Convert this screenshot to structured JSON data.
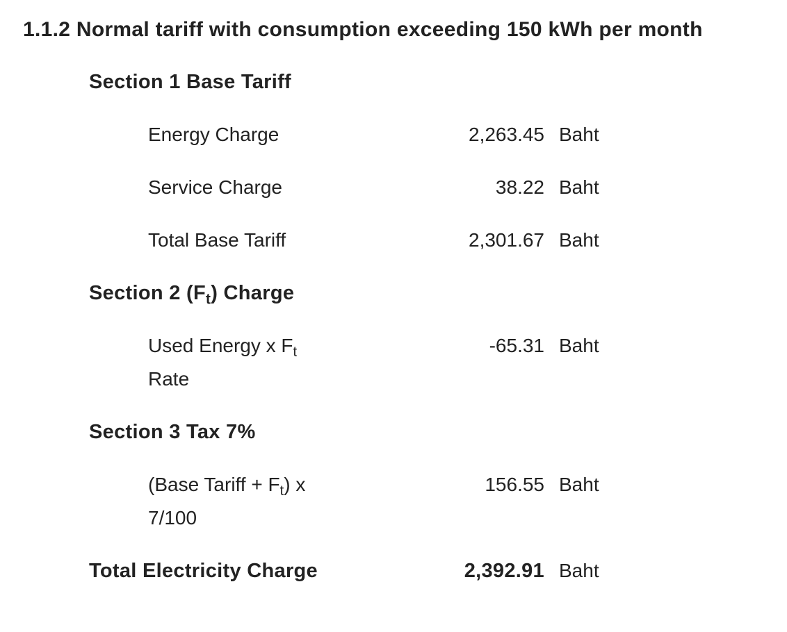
{
  "title": "1.1.2 Normal tariff with consumption exceeding 150 kWh per month",
  "sections": [
    {
      "heading": [
        "Section 1 Base Tariff"
      ],
      "rows": [
        {
          "label": [
            "Energy Charge"
          ],
          "value": "2,263.45",
          "unit": "Baht"
        },
        {
          "label": [
            "Service Charge"
          ],
          "value": "38.22",
          "unit": "Baht"
        },
        {
          "label": [
            "Total Base Tariff"
          ],
          "value": "2,301.67",
          "unit": "Baht"
        }
      ]
    },
    {
      "heading": [
        "Section 2 (F",
        "t",
        ") Charge"
      ],
      "rows": [
        {
          "label": [
            "Used Energy x F",
            "t",
            " Rate"
          ],
          "value": "-65.31",
          "unit": "Baht"
        }
      ]
    },
    {
      "heading": [
        "Section 3 Tax 7%"
      ],
      "rows": [
        {
          "label": [
            "(Base Tariff + F",
            "t",
            ") x 7/100"
          ],
          "value": "156.55",
          "unit": "Baht"
        }
      ]
    }
  ],
  "total": {
    "label": [
      "Total Electricity Charge"
    ],
    "value": "2,392.91",
    "unit": "Baht"
  }
}
